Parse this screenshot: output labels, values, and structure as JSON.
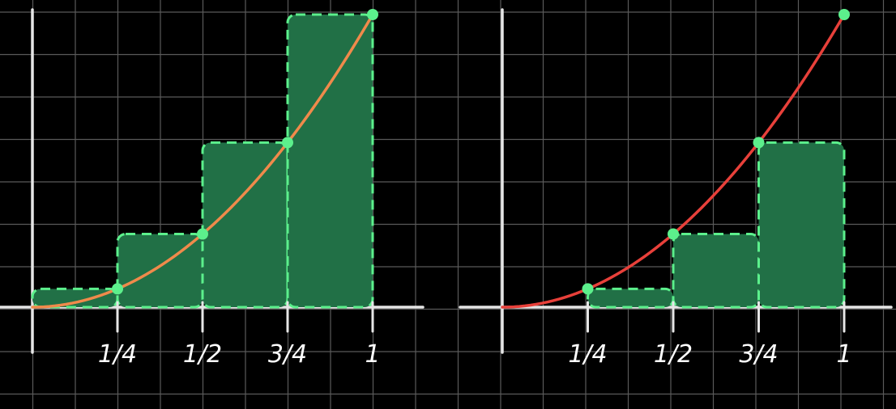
{
  "colors": {
    "background": "#000000",
    "grid": "#5a5a5a",
    "axis": "#e6e6e6",
    "rect_fill": "#217046",
    "rect_outline": "#5cf08c",
    "curve_left": "#f08a4b",
    "curve_right": "#e8403a",
    "point": "#5cf08c"
  },
  "chart_data": [
    {
      "type": "bar",
      "description_kind": "upper-riemann-sum",
      "function": "x^2",
      "xlim": [
        0,
        1
      ],
      "ylim": [
        0,
        1
      ],
      "categories": [
        "0–1/4",
        "1/4–1/2",
        "1/2–3/4",
        "3/4–1"
      ],
      "x_edges": [
        0,
        0.25,
        0.5,
        0.75,
        1
      ],
      "values": [
        0.0625,
        0.25,
        0.5625,
        1
      ],
      "curve_points": [
        [
          0,
          0
        ],
        [
          0.25,
          0.0625
        ],
        [
          0.5,
          0.25
        ],
        [
          0.75,
          0.5625
        ],
        [
          1,
          1
        ]
      ],
      "tick_labels": [
        "1/4",
        "1/2",
        "3/4",
        "1"
      ],
      "title": "",
      "xlabel": "",
      "ylabel": "",
      "grid": true
    },
    {
      "type": "bar",
      "description_kind": "lower-riemann-sum",
      "function": "x^2",
      "xlim": [
        0,
        1
      ],
      "ylim": [
        0,
        1
      ],
      "categories": [
        "0–1/4",
        "1/4–1/2",
        "1/2–3/4",
        "3/4–1"
      ],
      "x_edges": [
        0,
        0.25,
        0.5,
        0.75,
        1
      ],
      "values": [
        0,
        0.0625,
        0.25,
        0.5625
      ],
      "curve_points": [
        [
          0,
          0
        ],
        [
          0.25,
          0.0625
        ],
        [
          0.5,
          0.25
        ],
        [
          0.75,
          0.5625
        ],
        [
          1,
          1
        ]
      ],
      "tick_labels": [
        "1/4",
        "1/2",
        "3/4",
        "1"
      ],
      "title": "",
      "xlabel": "",
      "ylabel": "",
      "grid": true
    }
  ]
}
